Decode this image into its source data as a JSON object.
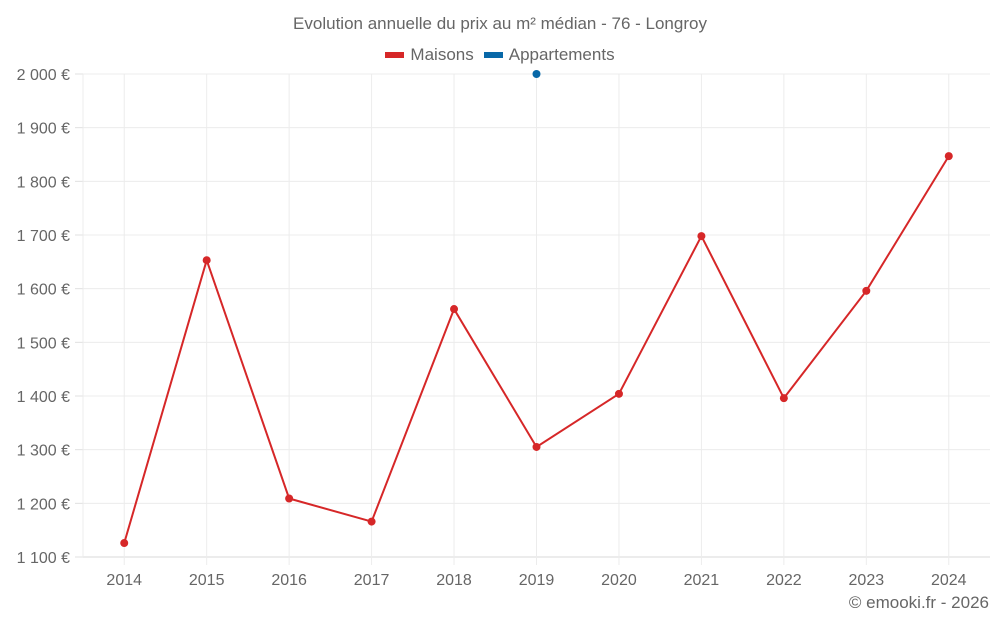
{
  "title": "Evolution annuelle du prix au m² médian - 76 - Longroy",
  "legend": [
    {
      "label": "Maisons",
      "color": "#d62728"
    },
    {
      "label": "Appartements",
      "color": "#0868a8"
    }
  ],
  "credit": "© emooki.fr - 2026",
  "chart_data": {
    "type": "line",
    "title": "Evolution annuelle du prix au m² médian - 76 - Longroy",
    "xlabel": "",
    "ylabel": "",
    "categories": [
      "2014",
      "2015",
      "2016",
      "2017",
      "2018",
      "2019",
      "2020",
      "2021",
      "2022",
      "2023",
      "2024"
    ],
    "series": [
      {
        "name": "Maisons",
        "color": "#d62728",
        "values": [
          1126,
          1653,
          1209,
          1166,
          1562,
          1305,
          1404,
          1698,
          1396,
          1596,
          1847
        ]
      },
      {
        "name": "Appartements",
        "color": "#0868a8",
        "values": [
          null,
          null,
          null,
          null,
          null,
          2000,
          null,
          null,
          null,
          null,
          null
        ]
      }
    ],
    "ylim": [
      1100,
      2000
    ],
    "yticks": [
      1100,
      1200,
      1300,
      1400,
      1500,
      1600,
      1700,
      1800,
      1900,
      2000
    ],
    "ytick_labels": [
      "1 100 €",
      "1 200 €",
      "1 300 €",
      "1 400 €",
      "1 500 €",
      "1 600 €",
      "1 700 €",
      "1 800 €",
      "1 900 €",
      "2 000 €"
    ],
    "grid": true,
    "legend_position": "top"
  }
}
